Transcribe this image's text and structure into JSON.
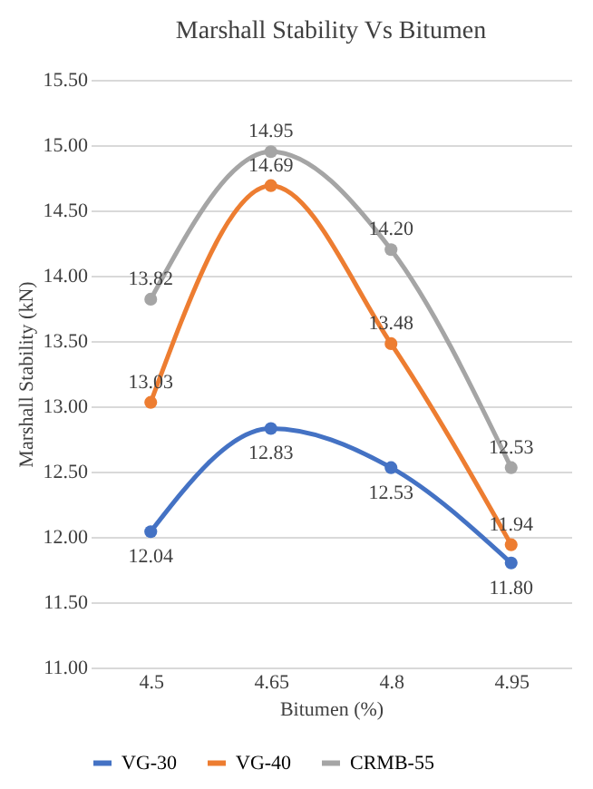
{
  "chart_data": {
    "type": "line",
    "title": "Marshall Stability Vs Bitumen",
    "xlabel": "Bitumen (%)",
    "ylabel": "Marshall Stability (kN)",
    "categories": [
      "4.5",
      "4.65",
      "4.8",
      "4.95"
    ],
    "series": [
      {
        "name": "VG-30",
        "color": "#4472c4",
        "values": [
          12.04,
          12.83,
          12.53,
          11.8
        ],
        "value_labels": [
          "12.04",
          "12.83",
          "12.53",
          "11.80"
        ]
      },
      {
        "name": "VG-40",
        "color": "#ed7d31",
        "values": [
          13.03,
          14.69,
          13.48,
          11.94
        ],
        "value_labels": [
          "13.03",
          "14.69",
          "13.48",
          "11.94"
        ]
      },
      {
        "name": "CRMB-55",
        "color": "#a5a5a5",
        "values": [
          13.82,
          14.95,
          14.2,
          12.53
        ],
        "value_labels": [
          "13.82",
          "14.95",
          "14.20",
          "12.53"
        ]
      }
    ],
    "ylim": [
      11,
      15.5
    ],
    "yticks": [
      {
        "value": 11,
        "label": "11.00"
      },
      {
        "value": 11.5,
        "label": "11.50"
      },
      {
        "value": 12,
        "label": "12.00"
      },
      {
        "value": 12.5,
        "label": "12.50"
      },
      {
        "value": 13,
        "label": "13.00"
      },
      {
        "value": 13.5,
        "label": "13.50"
      },
      {
        "value": 14,
        "label": "14.00"
      },
      {
        "value": 14.5,
        "label": "14.50"
      },
      {
        "value": 15,
        "label": "15.00"
      },
      {
        "value": 15.5,
        "label": "15.50"
      }
    ],
    "grid": "y",
    "legend": "bottom",
    "marker": "circle",
    "line_style": "solid"
  }
}
